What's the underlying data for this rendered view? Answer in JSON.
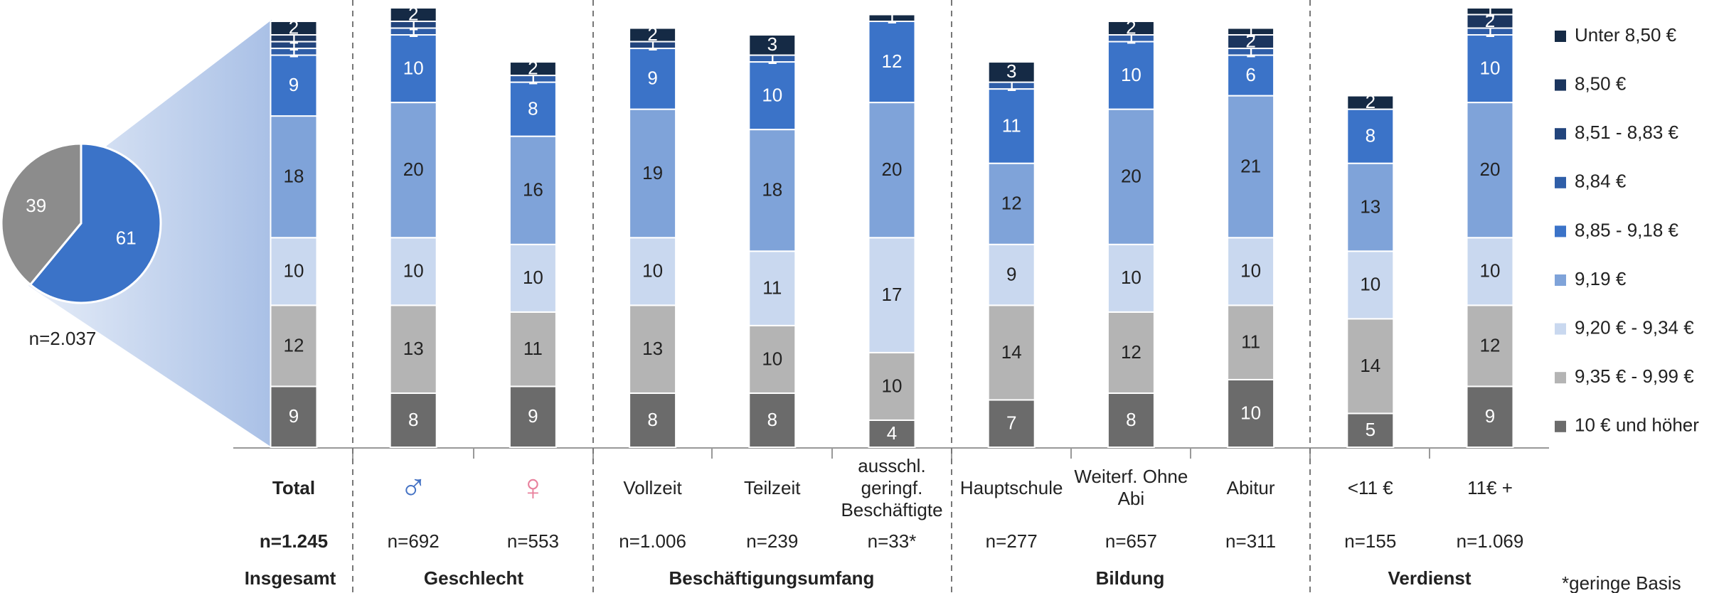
{
  "chart_data": [
    {
      "type": "bar",
      "stacked": true,
      "categories": [
        "Total",
        "♂",
        "♀",
        "Vollzeit",
        "Teilzeit",
        "ausschl. geringf. Beschäftigte",
        "Hauptschule",
        "Weiterf. Ohne Abi",
        "Abitur",
        "<11 €",
        "11€ +"
      ],
      "n_labels": [
        "n=1.245",
        "n=692",
        "n=553",
        "n=1.006",
        "n=239",
        "n=33*",
        "n=277",
        "n=657",
        "n=311",
        "n=155",
        "n=1.069"
      ],
      "groups": [
        "Insgesamt",
        "Geschlecht",
        "Beschäftigungsumfang",
        "Bildung",
        "Verdienst"
      ],
      "footnote": "*geringe Basis",
      "ylim": [
        0,
        65
      ],
      "series": [
        {
          "name": "10 € und höher",
          "color": "#6b6b6b",
          "values": [
            9,
            8,
            9,
            8,
            8,
            4,
            7,
            8,
            10,
            5,
            9
          ]
        },
        {
          "name": "9,35 € - 9,99 €",
          "color": "#b4b4b4",
          "values": [
            12,
            13,
            11,
            13,
            10,
            10,
            14,
            12,
            11,
            14,
            12
          ]
        },
        {
          "name": "9,20 € - 9,34 €",
          "color": "#c9d8ef",
          "values": [
            10,
            10,
            10,
            10,
            11,
            17,
            9,
            10,
            10,
            10,
            10
          ]
        },
        {
          "name": "9,19 €",
          "color": "#7fa3d9",
          "values": [
            18,
            20,
            16,
            19,
            18,
            20,
            12,
            20,
            21,
            13,
            20
          ]
        },
        {
          "name": "8,85 - 9,18 €",
          "color": "#3b73c8",
          "values": [
            9,
            10,
            8,
            9,
            10,
            12,
            11,
            10,
            6,
            8,
            10
          ]
        },
        {
          "name": "8,84 €",
          "color": "#2f5ea8",
          "values": [
            1,
            1,
            1,
            null,
            1,
            null,
            1,
            1,
            1,
            null,
            1
          ]
        },
        {
          "name": "8,51 - 8,83 €",
          "color": "#22447c",
          "values": [
            1,
            1,
            null,
            1,
            null,
            null,
            null,
            null,
            null,
            null,
            null
          ]
        },
        {
          "name": "8,50 €",
          "color": "#1b355e",
          "values": [
            1,
            null,
            null,
            null,
            null,
            null,
            null,
            null,
            2,
            null,
            2
          ]
        },
        {
          "name": "Unter 8,50 €",
          "color": "#152a45",
          "values": [
            2,
            2,
            2,
            2,
            3,
            1,
            3,
            2,
            1,
            2,
            1
          ]
        }
      ]
    },
    {
      "type": "pie",
      "values": [
        61,
        39
      ],
      "colors": [
        "#3b73c8",
        "#8c8c8c"
      ],
      "annotation": "n=2.037"
    }
  ]
}
